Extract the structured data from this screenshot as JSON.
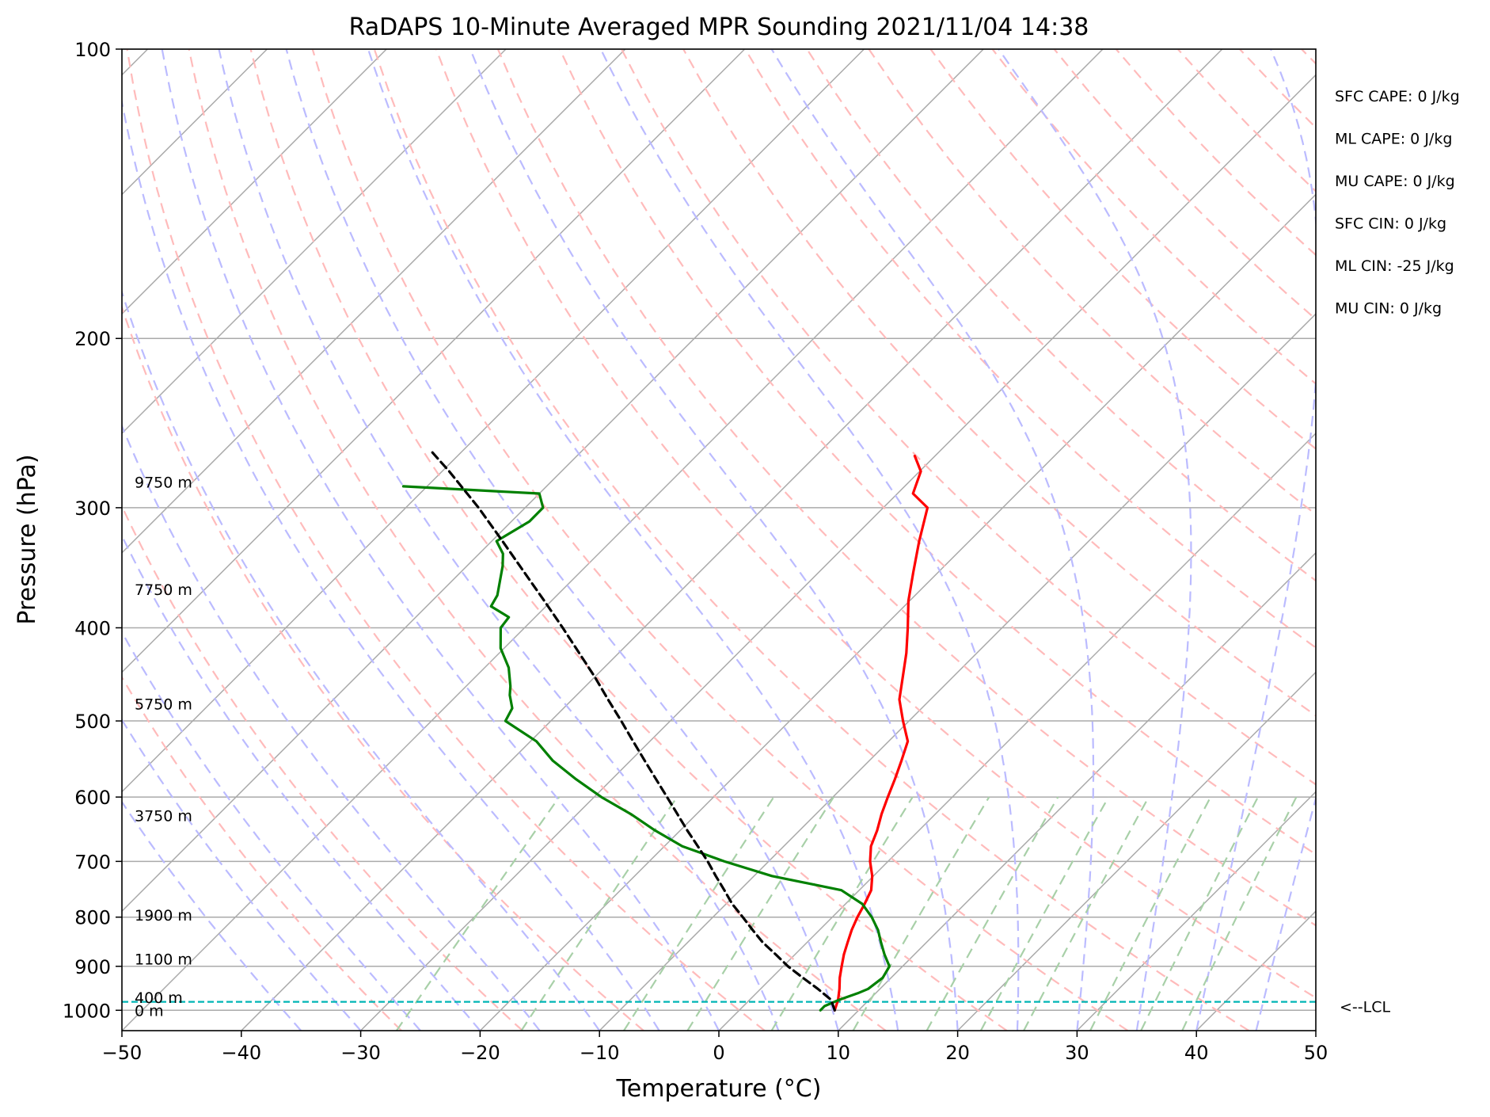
{
  "chart_data": {
    "type": "line",
    "title": "RaDAPS 10-Minute Averaged MPR Sounding 2021/11/04 14:38",
    "xlabel": "Temperature (°C)",
    "ylabel": "Pressure (hPa)",
    "xlim": [
      -50,
      50
    ],
    "ylim": [
      1050,
      100
    ],
    "y_scale": "log",
    "skew": true,
    "grid": true,
    "x_ticks": [
      "−50",
      "−40",
      "−30",
      "−20",
      "−10",
      "0",
      "10",
      "20",
      "30",
      "40",
      "50"
    ],
    "y_ticks": [
      "100",
      "200",
      "300",
      "400",
      "500",
      "600",
      "700",
      "800",
      "900",
      "1000"
    ],
    "colors": {
      "temperature": "#ff0000",
      "dewpoint": "#008000",
      "parcel": "#000000",
      "dry_adiabats": "#ffbbbb",
      "moist_adiabats": "#bbbbff",
      "mixing_ratio": "#a8d0a8",
      "isotherms": "#aaaaaa",
      "lcl": "#00b5b5"
    },
    "series": [
      {
        "key": "temperature",
        "points": [
          [
            8.0,
            1000
          ],
          [
            7.4,
            975
          ],
          [
            6.6,
            950
          ],
          [
            5.7,
            925
          ],
          [
            4.9,
            900
          ],
          [
            4.1,
            875
          ],
          [
            3.4,
            850
          ],
          [
            2.7,
            825
          ],
          [
            2.1,
            800
          ],
          [
            1.6,
            775
          ],
          [
            1.0,
            750
          ],
          [
            -0.1,
            725
          ],
          [
            -1.5,
            700
          ],
          [
            -2.7,
            675
          ],
          [
            -3.5,
            650
          ],
          [
            -4.5,
            625
          ],
          [
            -5.4,
            600
          ],
          [
            -6.3,
            575
          ],
          [
            -7.3,
            550
          ],
          [
            -8.4,
            525
          ],
          [
            -10.5,
            500
          ],
          [
            -12.6,
            475
          ],
          [
            -14.2,
            450
          ],
          [
            -15.9,
            425
          ],
          [
            -17.9,
            400
          ],
          [
            -20.1,
            375
          ],
          [
            -22.1,
            350
          ],
          [
            -24.2,
            325
          ],
          [
            -26.3,
            300
          ],
          [
            -28.7,
            290
          ],
          [
            -29.9,
            275
          ],
          [
            -31.7,
            265
          ]
        ]
      },
      {
        "key": "dewpoint",
        "points": [
          [
            6.8,
            1000
          ],
          [
            6.8,
            990
          ],
          [
            7.5,
            975
          ],
          [
            8.5,
            960
          ],
          [
            9.0,
            950
          ],
          [
            9.3,
            925
          ],
          [
            8.9,
            900
          ],
          [
            7.5,
            875
          ],
          [
            6.2,
            850
          ],
          [
            4.9,
            825
          ],
          [
            3.3,
            800
          ],
          [
            1.4,
            775
          ],
          [
            -1.5,
            750
          ],
          [
            -8.5,
            725
          ],
          [
            -13.7,
            700
          ],
          [
            -18.5,
            675
          ],
          [
            -22.1,
            650
          ],
          [
            -25.5,
            625
          ],
          [
            -29.4,
            600
          ],
          [
            -33.0,
            575
          ],
          [
            -36.5,
            550
          ],
          [
            -39.5,
            525
          ],
          [
            -43.8,
            500
          ],
          [
            -44.3,
            485
          ],
          [
            -45.6,
            470
          ],
          [
            -46.3,
            460
          ],
          [
            -48.0,
            440
          ],
          [
            -50.3,
            420
          ],
          [
            -52.0,
            400
          ],
          [
            -52.2,
            390
          ],
          [
            -54.6,
            380
          ],
          [
            -55.0,
            370
          ],
          [
            -57.0,
            345
          ],
          [
            -58.0,
            335
          ],
          [
            -59.6,
            325
          ],
          [
            -58.5,
            310
          ],
          [
            -58.5,
            300
          ],
          [
            -60.0,
            290
          ],
          [
            -72.0,
            285
          ]
        ]
      },
      {
        "key": "parcel",
        "points": [
          [
            8.0,
            1000
          ],
          [
            6.8,
            975
          ],
          [
            4.8,
            950
          ],
          [
            2.6,
            925
          ],
          [
            0.4,
            900
          ],
          [
            -1.6,
            875
          ],
          [
            -3.7,
            850
          ],
          [
            -5.6,
            825
          ],
          [
            -7.5,
            800
          ],
          [
            -9.5,
            775
          ],
          [
            -11.3,
            750
          ],
          [
            -13.2,
            725
          ],
          [
            -15.1,
            700
          ],
          [
            -17.2,
            675
          ],
          [
            -19.4,
            650
          ],
          [
            -21.6,
            625
          ],
          [
            -23.9,
            600
          ],
          [
            -26.3,
            575
          ],
          [
            -28.8,
            550
          ],
          [
            -31.4,
            525
          ],
          [
            -34.1,
            500
          ],
          [
            -37.0,
            475
          ],
          [
            -40.0,
            450
          ],
          [
            -43.3,
            425
          ],
          [
            -46.8,
            400
          ],
          [
            -50.6,
            375
          ],
          [
            -54.7,
            350
          ],
          [
            -59.1,
            325
          ],
          [
            -63.9,
            300
          ],
          [
            -69.4,
            275
          ],
          [
            -72.6,
            262
          ]
        ]
      }
    ],
    "height_labels": [
      {
        "text": "9750 m",
        "pressure": 282
      },
      {
        "text": "7750 m",
        "pressure": 365
      },
      {
        "text": "5750 m",
        "pressure": 480
      },
      {
        "text": "3750 m",
        "pressure": 627
      },
      {
        "text": "1900 m",
        "pressure": 796
      },
      {
        "text": "1100 m",
        "pressure": 884
      },
      {
        "text": "400 m",
        "pressure": 970
      },
      {
        "text": "0 m",
        "pressure": 1000
      }
    ],
    "lcl": {
      "pressure": 980,
      "label": "<--LCL"
    },
    "stats": [
      "SFC CAPE: 0 J/kg",
      "ML CAPE: 0 J/kg",
      "MU CAPE: 0 J/kg",
      "SFC CIN: 0 J/kg",
      "ML CIN: -25 J/kg",
      "MU CIN: 0 J/kg"
    ]
  }
}
